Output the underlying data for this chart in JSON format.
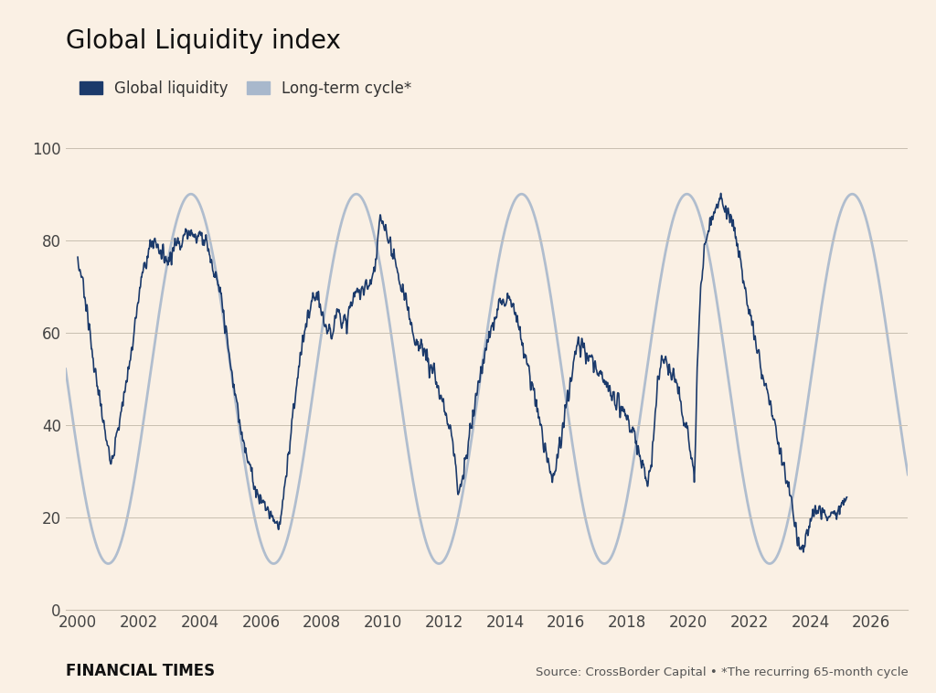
{
  "title": "Global Liquidity index",
  "legend_label_1": "Global liquidity",
  "legend_label_2": "Long-term cycle*",
  "line_color_1": "#1b3a6b",
  "line_color_2": "#a8b8cc",
  "background_color": "#faf0e4",
  "plot_background_color": "#faf0e4",
  "grid_color": "#c8bfb0",
  "title_fontsize": 20,
  "label_fontsize": 12,
  "tick_fontsize": 12,
  "footer_ft_text": "FINANCIAL TIMES",
  "footer_source_text": "Source: CrossBorder Capital • *The recurring 65-month cycle",
  "ylim": [
    0,
    105
  ],
  "yticks": [
    0,
    20,
    40,
    60,
    80,
    100
  ],
  "xticks": [
    2000,
    2002,
    2004,
    2006,
    2008,
    2010,
    2012,
    2014,
    2016,
    2018,
    2020,
    2022,
    2024,
    2026
  ],
  "cycle_amplitude": 40,
  "cycle_midline": 50,
  "cycle_period_years": 5.417,
  "cycle_trough_year": 2001.0,
  "xmin": 1999.6,
  "xmax": 2027.2
}
